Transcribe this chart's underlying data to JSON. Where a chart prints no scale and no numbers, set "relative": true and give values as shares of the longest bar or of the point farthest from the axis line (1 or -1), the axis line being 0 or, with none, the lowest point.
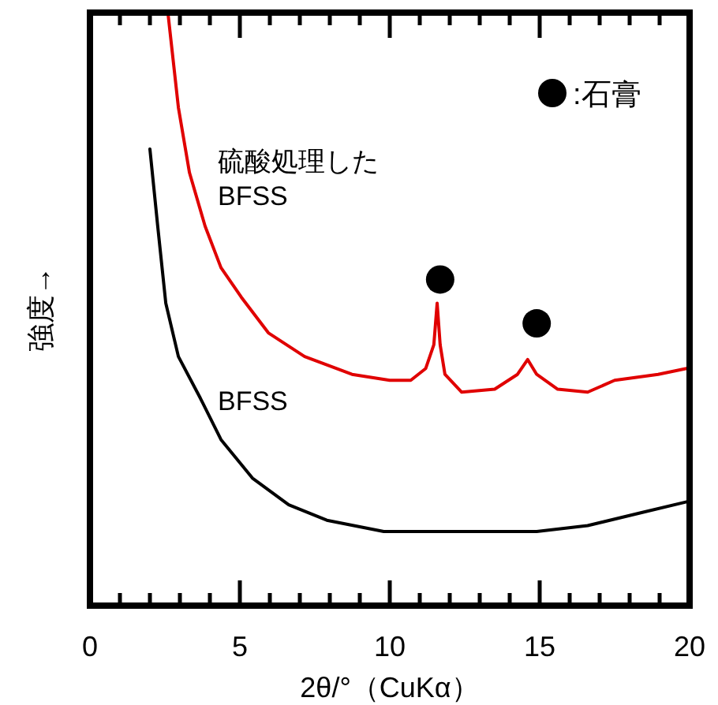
{
  "chart_data": {
    "type": "line",
    "relative": true,
    "xlabel": "2θ/°（CuKα）",
    "ylabel": "強度→",
    "xlim": [
      0,
      20
    ],
    "xticks": [
      0,
      {
        "value": 1,
        "label": null
      },
      {
        "value": 2,
        "label": null
      },
      {
        "value": 3,
        "label": null
      },
      {
        "value": 4,
        "label": null
      },
      5,
      {
        "value": 6,
        "label": null
      },
      {
        "value": 7,
        "label": null
      },
      {
        "value": 8,
        "label": null
      },
      {
        "value": 9,
        "label": null
      },
      10,
      {
        "value": 11,
        "label": null
      },
      {
        "value": 12,
        "label": null
      },
      {
        "value": 13,
        "label": null
      },
      {
        "value": 14,
        "label": null
      },
      15,
      {
        "value": 16,
        "label": null
      },
      {
        "value": 17,
        "label": null
      },
      {
        "value": 18,
        "label": null
      },
      {
        "value": 19,
        "label": null
      },
      20
    ],
    "tick_labels": "x",
    "grid": false,
    "legend": "top right",
    "marker": "none",
    "line_style": "solid",
    "series": [
      {
        "name": "硫酸処理した\nBFSS",
        "color": "#e00000",
        "x": [
          2.6,
          2.95,
          3.32,
          3.84,
          4.37,
          5.05,
          5.95,
          7.16,
          8.74,
          10.0,
          10.7,
          11.2,
          11.47,
          11.58,
          11.68,
          11.84,
          12.4,
          13.5,
          14.26,
          14.6,
          14.9,
          15.6,
          16.6,
          17.5,
          18.95,
          19.9
        ],
        "values": [
          1.0,
          0.84,
          0.73,
          0.64,
          0.57,
          0.52,
          0.46,
          0.42,
          0.39,
          0.38,
          0.38,
          0.4,
          0.44,
          0.51,
          0.44,
          0.39,
          0.36,
          0.365,
          0.39,
          0.415,
          0.39,
          0.365,
          0.36,
          0.38,
          0.39,
          0.4
        ]
      },
      {
        "name": "BFSS",
        "color": "#000000",
        "x": [
          2.0,
          2.26,
          2.53,
          2.95,
          3.68,
          4.37,
          5.42,
          6.63,
          7.9,
          9.8,
          12.0,
          14.9,
          16.6,
          18.4,
          19.9
        ],
        "values": [
          0.77,
          0.64,
          0.51,
          0.42,
          0.35,
          0.28,
          0.215,
          0.17,
          0.144,
          0.125,
          0.125,
          0.125,
          0.135,
          0.157,
          0.175
        ]
      },
      {
        "name": ":石膏",
        "type": "scatter",
        "marker": "circle",
        "color": "#000000",
        "x": [
          11.68,
          14.9
        ],
        "values": [
          0.55,
          0.476
        ]
      }
    ]
  }
}
